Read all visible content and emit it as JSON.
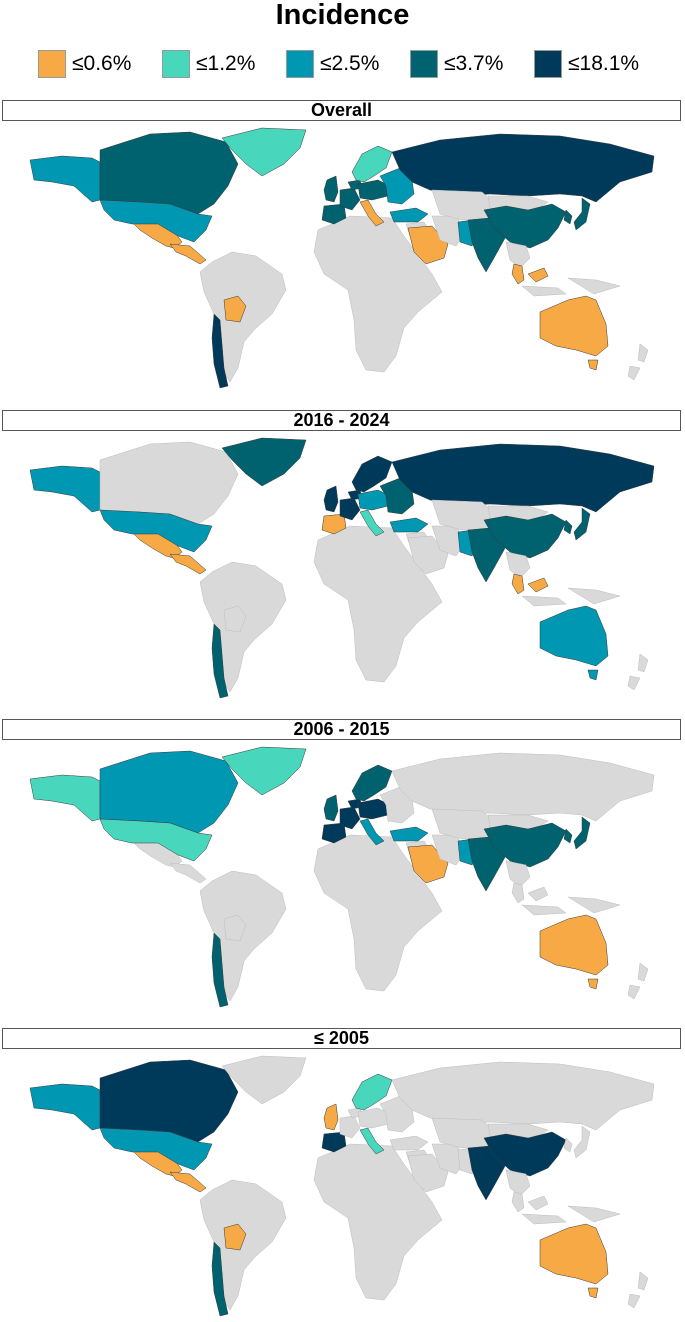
{
  "title": "Incidence",
  "legend": [
    {
      "label": "≤0.6%",
      "color": "#F6A945"
    },
    {
      "label": "≤1.2%",
      "color": "#48D6BC"
    },
    {
      "label": "≤2.5%",
      "color": "#0097B2"
    },
    {
      "label": "≤3.7%",
      "color": "#00626F"
    },
    {
      "label": "≤18.1%",
      "color": "#003A5A"
    }
  ],
  "no_data_color": "#D9D9D9",
  "panels": [
    {
      "title": "Overall",
      "regions": {
        "alaska": 3,
        "canada": 4,
        "greenland": 2,
        "usa": 3,
        "mexico": 1,
        "central_america": 1,
        "south_america": 0,
        "bolivia": 1,
        "chile": 5,
        "iberia": 4,
        "france": 4,
        "uk": 4,
        "benelux": 4,
        "scandinavia": 2,
        "central_europe": 4,
        "italy": 1,
        "eastern_europe": 3,
        "russia": 5,
        "turkey": 3,
        "middle_east": 0,
        "saudi": 1,
        "iran": 0,
        "central_asia": 0,
        "pakistan": 3,
        "india": 4,
        "china": 4,
        "mongolia": 0,
        "korea_japan": 4,
        "se_asia": 0,
        "malaysia": 1,
        "indonesia": 0,
        "australia": 1,
        "tasmania": 1,
        "new_zealand": 0,
        "africa": 0
      }
    },
    {
      "title": "2016 - 2024",
      "regions": {
        "alaska": 3,
        "canada": 0,
        "greenland": 4,
        "usa": 3,
        "mexico": 1,
        "central_america": 1,
        "south_america": 0,
        "bolivia": 0,
        "chile": 4,
        "iberia": 1,
        "france": 5,
        "uk": 5,
        "benelux": 5,
        "scandinavia": 5,
        "central_europe": 3,
        "italy": 2,
        "eastern_europe": 4,
        "russia": 5,
        "turkey": 3,
        "middle_east": 0,
        "saudi": 0,
        "iran": 0,
        "central_asia": 0,
        "pakistan": 3,
        "india": 4,
        "china": 4,
        "mongolia": 0,
        "korea_japan": 4,
        "se_asia": 0,
        "malaysia": 1,
        "indonesia": 0,
        "australia": 3,
        "tasmania": 3,
        "new_zealand": 0,
        "africa": 0
      }
    },
    {
      "title": "2006 - 2015",
      "regions": {
        "alaska": 2,
        "canada": 3,
        "greenland": 2,
        "usa": 2,
        "mexico": 0,
        "central_america": 0,
        "south_america": 0,
        "bolivia": 0,
        "chile": 4,
        "iberia": 5,
        "france": 5,
        "uk": 4,
        "benelux": 5,
        "scandinavia": 4,
        "central_europe": 5,
        "italy": 3,
        "eastern_europe": 0,
        "russia": 0,
        "turkey": 3,
        "middle_east": 0,
        "saudi": 1,
        "iran": 0,
        "central_asia": 0,
        "pakistan": 3,
        "india": 4,
        "china": 4,
        "mongolia": 0,
        "korea_japan": 4,
        "se_asia": 0,
        "malaysia": 0,
        "indonesia": 0,
        "australia": 1,
        "tasmania": 1,
        "new_zealand": 0,
        "africa": 0
      }
    },
    {
      "title": "≤ 2005",
      "regions": {
        "alaska": 3,
        "canada": 5,
        "greenland": 0,
        "usa": 3,
        "mexico": 1,
        "central_america": 1,
        "south_america": 0,
        "bolivia": 1,
        "chile": 4,
        "iberia": 5,
        "france": 0,
        "uk": 1,
        "benelux": 0,
        "scandinavia": 2,
        "central_europe": 0,
        "italy": 2,
        "eastern_europe": 0,
        "russia": 0,
        "turkey": 0,
        "middle_east": 0,
        "saudi": 0,
        "iran": 0,
        "central_asia": 0,
        "pakistan": 0,
        "india": 5,
        "china": 5,
        "mongolia": 0,
        "korea_japan": 0,
        "se_asia": 0,
        "malaysia": 0,
        "indonesia": 0,
        "australia": 1,
        "tasmania": 1,
        "new_zealand": 0,
        "africa": 0
      }
    }
  ]
}
